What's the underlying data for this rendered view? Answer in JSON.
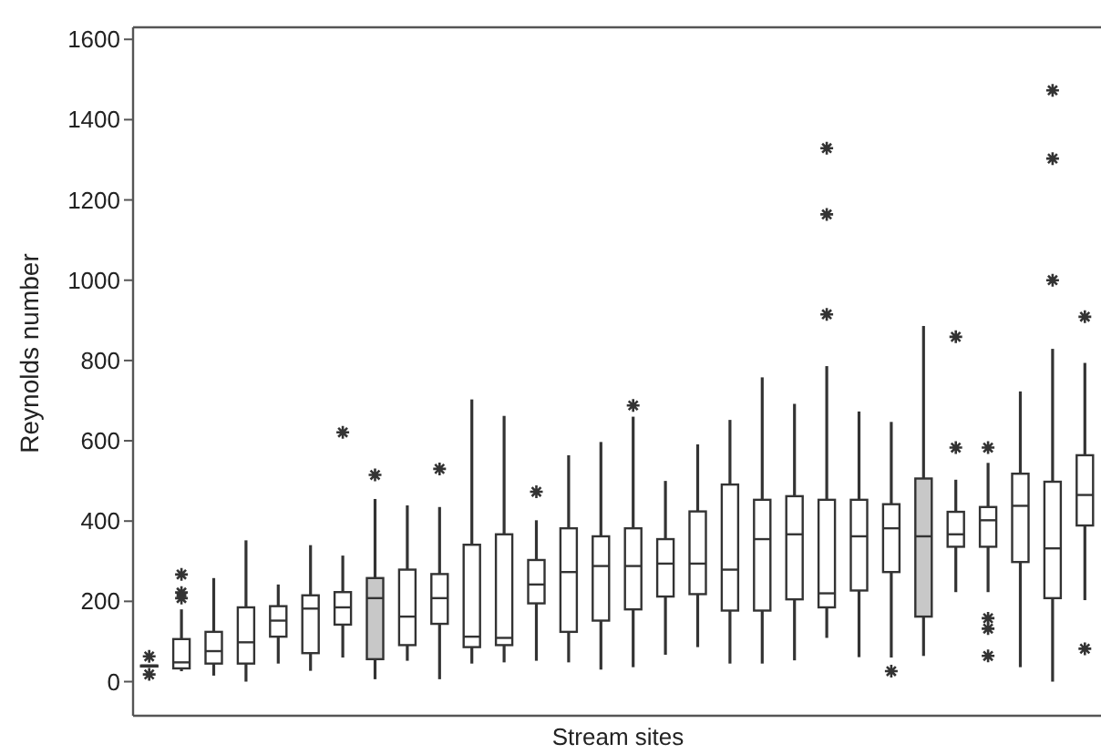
{
  "chart_data": {
    "type": "box",
    "xlabel": "Stream sites",
    "ylabel": "Reynolds number",
    "categories": [
      null,
      null,
      null,
      null,
      null,
      null,
      null,
      null,
      null,
      null,
      null,
      null,
      null,
      null,
      null,
      null,
      null,
      null,
      null,
      null,
      null,
      null,
      null,
      null,
      null,
      null,
      null,
      null,
      null,
      null
    ],
    "ylim": [
      -85,
      1630
    ],
    "yticks": [
      0,
      200,
      400,
      600,
      800,
      1000,
      1200,
      1400,
      1600
    ],
    "tick_labels": "y",
    "grid": false,
    "marker": "star",
    "colors": [
      "#ffffff",
      "#ffffff",
      "#ffffff",
      "#ffffff",
      "#ffffff",
      "#ffffff",
      "#ffffff",
      "#c8c8c8",
      "#ffffff",
      "#ffffff",
      "#ffffff",
      "#ffffff",
      "#ffffff",
      "#ffffff",
      "#ffffff",
      "#ffffff",
      "#ffffff",
      "#ffffff",
      "#ffffff",
      "#ffffff",
      "#ffffff",
      "#ffffff",
      "#ffffff",
      "#ffffff",
      "#c8c8c8",
      "#ffffff",
      "#ffffff",
      "#ffffff",
      "#ffffff",
      "#ffffff"
    ],
    "boxes": [
      {
        "low": 40,
        "q1": 40,
        "median": 40,
        "q3": 40,
        "high": 40,
        "outliers": [
          63,
          18
        ]
      },
      {
        "low": 26,
        "q1": 33,
        "median": 48,
        "q3": 106,
        "high": 180,
        "outliers": [
          267,
          222,
          208
        ]
      },
      {
        "low": 15,
        "q1": 45,
        "median": 76,
        "q3": 124,
        "high": 258
      },
      {
        "low": 0,
        "q1": 45,
        "median": 98,
        "q3": 185,
        "high": 352
      },
      {
        "low": 45,
        "q1": 112,
        "median": 152,
        "q3": 188,
        "high": 242
      },
      {
        "low": 27,
        "q1": 71,
        "median": 182,
        "q3": 215,
        "high": 340
      },
      {
        "low": 60,
        "q1": 142,
        "median": 185,
        "q3": 223,
        "high": 314,
        "outliers": [
          621
        ]
      },
      {
        "low": 6,
        "q1": 56,
        "median": 208,
        "q3": 258,
        "high": 455,
        "outliers": [
          515
        ]
      },
      {
        "low": 52,
        "q1": 91,
        "median": 162,
        "q3": 279,
        "high": 439
      },
      {
        "low": 6,
        "q1": 144,
        "median": 208,
        "q3": 268,
        "high": 435,
        "outliers": [
          530
        ]
      },
      {
        "low": 45,
        "q1": 86,
        "median": 112,
        "q3": 341,
        "high": 703
      },
      {
        "low": 48,
        "q1": 91,
        "median": 109,
        "q3": 367,
        "high": 662
      },
      {
        "low": 52,
        "q1": 195,
        "median": 242,
        "q3": 303,
        "high": 402,
        "outliers": [
          473
        ]
      },
      {
        "low": 48,
        "q1": 124,
        "median": 273,
        "q3": 382,
        "high": 564
      },
      {
        "low": 30,
        "q1": 152,
        "median": 288,
        "q3": 362,
        "high": 597
      },
      {
        "low": 36,
        "q1": 180,
        "median": 288,
        "q3": 382,
        "high": 660,
        "outliers": [
          688
        ]
      },
      {
        "low": 67,
        "q1": 212,
        "median": 294,
        "q3": 355,
        "high": 500
      },
      {
        "low": 86,
        "q1": 218,
        "median": 294,
        "q3": 424,
        "high": 591
      },
      {
        "low": 45,
        "q1": 177,
        "median": 279,
        "q3": 491,
        "high": 652
      },
      {
        "low": 45,
        "q1": 177,
        "median": 355,
        "q3": 453,
        "high": 758
      },
      {
        "low": 53,
        "q1": 205,
        "median": 367,
        "q3": 462,
        "high": 692
      },
      {
        "low": 109,
        "q1": 185,
        "median": 220,
        "q3": 453,
        "high": 786,
        "outliers": [
          1329,
          1164,
          915
        ]
      },
      {
        "low": 61,
        "q1": 227,
        "median": 362,
        "q3": 453,
        "high": 673
      },
      {
        "low": 60,
        "q1": 273,
        "median": 382,
        "q3": 442,
        "high": 647,
        "outliers": [
          26
        ]
      },
      {
        "low": 64,
        "q1": 162,
        "median": 362,
        "q3": 506,
        "high": 886
      },
      {
        "low": 223,
        "q1": 336,
        "median": 367,
        "q3": 423,
        "high": 503,
        "outliers": [
          859,
          583
        ]
      },
      {
        "low": 223,
        "q1": 336,
        "median": 402,
        "q3": 435,
        "high": 545,
        "outliers": [
          583,
          158,
          132,
          64
        ]
      },
      {
        "low": 36,
        "q1": 298,
        "median": 438,
        "q3": 518,
        "high": 723
      },
      {
        "low": 0,
        "q1": 208,
        "median": 332,
        "q3": 498,
        "high": 829,
        "outliers": [
          1473,
          1303,
          1000
        ]
      },
      {
        "low": 203,
        "q1": 389,
        "median": 465,
        "q3": 564,
        "high": 794,
        "outliers": [
          909,
          82
        ]
      }
    ]
  }
}
